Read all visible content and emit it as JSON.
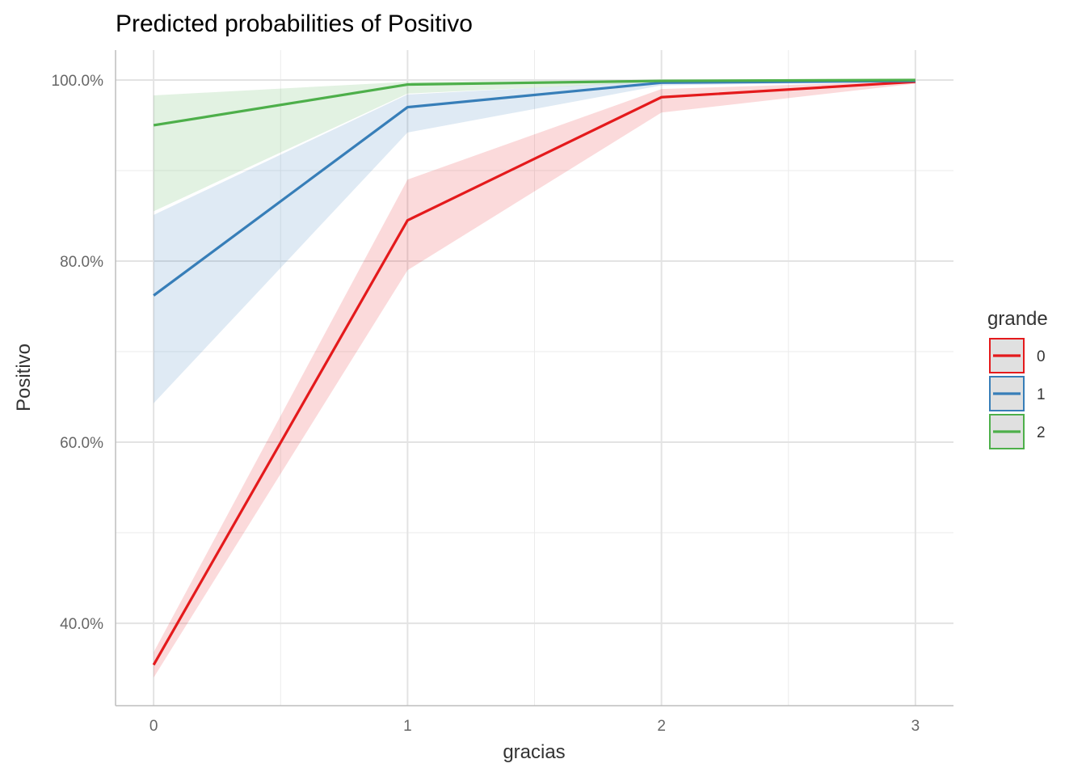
{
  "chart_data": {
    "type": "line",
    "title": "Predicted probabilities of Positivo",
    "xlabel": "gracias",
    "ylabel": "Positivo",
    "x": [
      0,
      1,
      2,
      3
    ],
    "x_ticks": [
      "0",
      "1",
      "2",
      "3"
    ],
    "xlim": [
      -0.15,
      3.15
    ],
    "ylim": [
      0.309,
      1.033
    ],
    "y_ticks": [
      0.4,
      0.6,
      0.8,
      1.0
    ],
    "y_tick_labels": [
      "40.0%",
      "60.0%",
      "80.0%",
      "100.0%"
    ],
    "y_minor_ticks": [
      0.5,
      0.7,
      0.9
    ],
    "x_minor_ticks": [
      0.5,
      1.5,
      2.5
    ],
    "grid": true,
    "legend": {
      "title": "grande",
      "position": "right"
    },
    "series": [
      {
        "name": "0",
        "color": "#E41A1C",
        "values": [
          0.354,
          0.845,
          0.981,
          0.998
        ],
        "lower": [
          0.34,
          0.79,
          0.964,
          0.996
        ],
        "upper": [
          0.368,
          0.89,
          0.99,
          0.999
        ]
      },
      {
        "name": "1",
        "color": "#377EB8",
        "values": [
          0.762,
          0.97,
          0.997,
          0.999
        ],
        "lower": [
          0.643,
          0.942,
          0.994,
          0.998
        ],
        "upper": [
          0.851,
          0.984,
          0.999,
          1.0
        ]
      },
      {
        "name": "2",
        "color": "#4DAF4A",
        "values": [
          0.95,
          0.995,
          0.999,
          1.0
        ],
        "lower": [
          0.855,
          0.985,
          0.998,
          0.999
        ],
        "upper": [
          0.983,
          0.998,
          1.0,
          1.0
        ]
      }
    ]
  }
}
